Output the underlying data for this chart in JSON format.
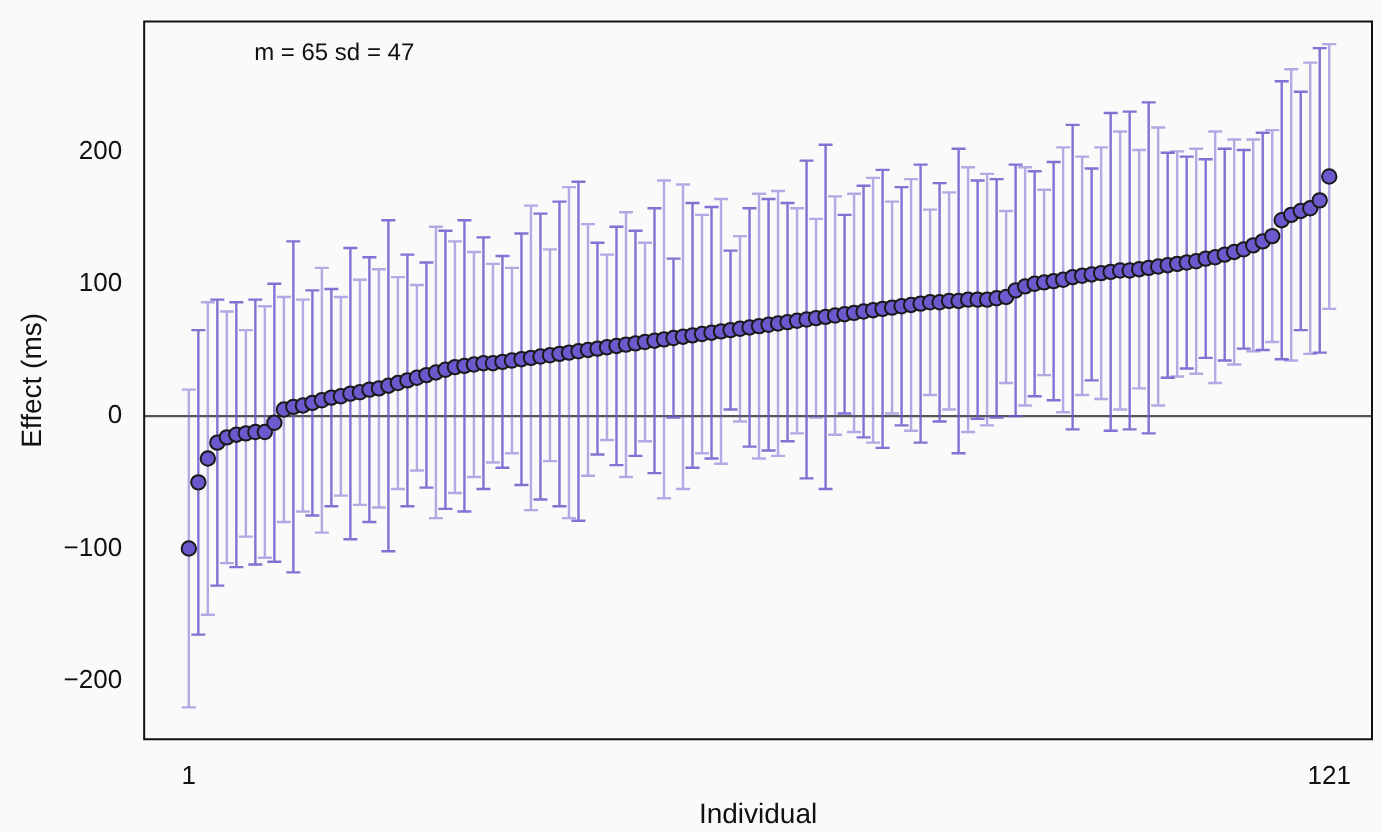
{
  "chart_data": {
    "type": "scatter",
    "xlabel": "Individual",
    "ylabel": "Effect (ms)",
    "annotations": [
      "m = 65 sd = 47"
    ],
    "x": [
      1,
      2,
      3,
      4,
      5,
      6,
      7,
      8,
      9,
      10,
      11,
      12,
      13,
      14,
      15,
      16,
      17,
      18,
      19,
      20,
      21,
      22,
      23,
      24,
      25,
      26,
      27,
      28,
      29,
      30,
      31,
      32,
      33,
      34,
      35,
      36,
      37,
      38,
      39,
      40,
      41,
      42,
      43,
      44,
      45,
      46,
      47,
      48,
      49,
      50,
      51,
      52,
      53,
      54,
      55,
      56,
      57,
      58,
      59,
      60,
      61,
      62,
      63,
      64,
      65,
      66,
      67,
      68,
      69,
      70,
      71,
      72,
      73,
      74,
      75,
      76,
      77,
      78,
      79,
      80,
      81,
      82,
      83,
      84,
      85,
      86,
      87,
      88,
      89,
      90,
      91,
      92,
      93,
      94,
      95,
      96,
      97,
      98,
      99,
      100,
      101,
      102,
      103,
      104,
      105,
      106,
      107,
      108,
      109,
      110,
      111,
      112,
      113,
      114,
      115,
      116,
      117,
      118,
      119,
      120,
      121
    ],
    "series": [
      {
        "color": "#6a5acd",
        "values": [
          -100,
          -50,
          -32,
          -20,
          -16,
          -14,
          -13,
          -12,
          -12,
          -5,
          5,
          7,
          8,
          10,
          12,
          14,
          15,
          17,
          18,
          20,
          21,
          23,
          25,
          27,
          29,
          31,
          33,
          35,
          37,
          38,
          39,
          40,
          40,
          41,
          42,
          43,
          44,
          45,
          46,
          47,
          48,
          49,
          50,
          51,
          52,
          53,
          54,
          55,
          56,
          57,
          58,
          59,
          60,
          61,
          62,
          63,
          64,
          65,
          66,
          67,
          68,
          69,
          70,
          71,
          72,
          73,
          74,
          75,
          76,
          77,
          78,
          79,
          80,
          81,
          82,
          83,
          84,
          85,
          86,
          86,
          87,
          87,
          88,
          88,
          88,
          89,
          90,
          95,
          98,
          100,
          101,
          102,
          103,
          105,
          106,
          107,
          108,
          109,
          110,
          110,
          111,
          112,
          113,
          114,
          115,
          116,
          117,
          119,
          120,
          122,
          124,
          126,
          129,
          132,
          136,
          148,
          152,
          155,
          157,
          163,
          181
        ],
        "errors": [
          120,
          115,
          118,
          108,
          95,
          100,
          78,
          100,
          95,
          105,
          85,
          125,
          80,
          85,
          100,
          82,
          75,
          110,
          85,
          100,
          90,
          125,
          80,
          95,
          70,
          85,
          110,
          105,
          95,
          110,
          85,
          95,
          75,
          80,
          70,
          95,
          115,
          108,
          80,
          115,
          125,
          128,
          95,
          80,
          70,
          90,
          100,
          85,
          75,
          100,
          120,
          60,
          115,
          100,
          90,
          95,
          100,
          60,
          70,
          90,
          100,
          95,
          100,
          90,
          85,
          120,
          75,
          130,
          90,
          75,
          90,
          95,
          100,
          105,
          80,
          90,
          95,
          105,
          70,
          90,
          82,
          115,
          100,
          90,
          95,
          90,
          65,
          95,
          90,
          85,
          70,
          90,
          100,
          115,
          90,
          80,
          95,
          120,
          105,
          120,
          90,
          125,
          105,
          85,
          85,
          80,
          85,
          75,
          95,
          80,
          85,
          75,
          80,
          82,
          80,
          105,
          110,
          90,
          110,
          115,
          100
        ]
      }
    ],
    "xlim": [
      -3.7,
      125.5
    ],
    "xticks": [
      1,
      121
    ],
    "ylim": [
      -244,
      298
    ],
    "yticks": [
      -200,
      -100,
      0,
      100,
      200
    ],
    "ref_lines": [
      {
        "axis": "y",
        "value": 0,
        "color": "#555555"
      }
    ],
    "grid": false,
    "legend": false,
    "marker": "circle"
  }
}
